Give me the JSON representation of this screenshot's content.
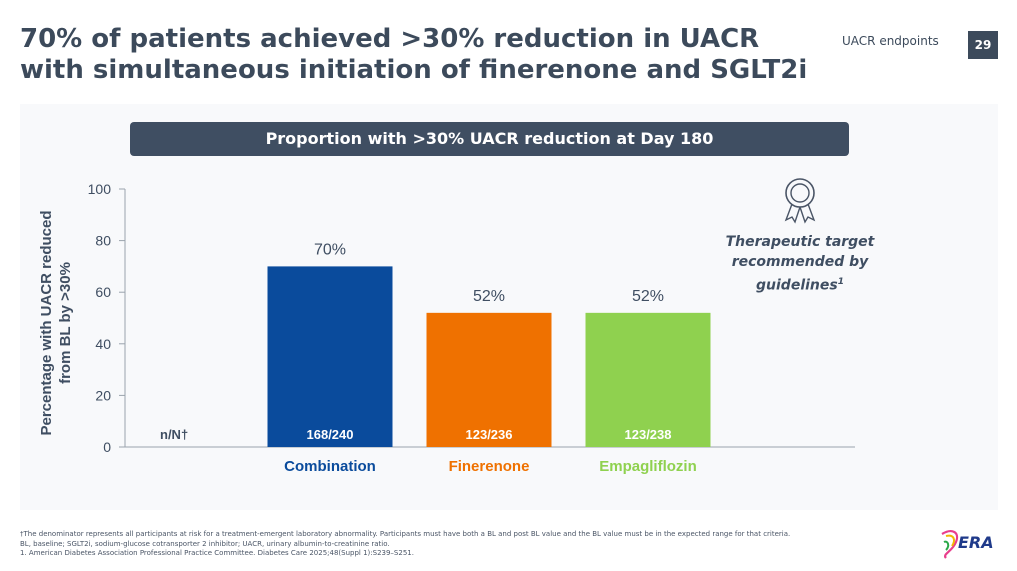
{
  "slide": {
    "title": "70% of patients achieved >30% reduction in UACR with simultaneous initiation of finerenone and SGLT2i",
    "tag": "UACR endpoints",
    "page_number": "29"
  },
  "banner": "Proportion with >30% UACR reduction at Day 180",
  "target_note": {
    "text": "Therapeutic target recommended by guidelines",
    "sup": "1",
    "icon": "award-ribbon-icon"
  },
  "footnotes": [
    "†The denominator represents all participants at risk for a treatment-emergent laboratory abnormality. Participants must have both a BL and post BL value and the BL value must be in the expected range for that criteria.",
    "BL, baseline; SGLT2i, sodium-glucose cotransporter 2 inhibitor; UACR, urinary albumin-to-creatinine ratio.",
    "1. American Diabetes Association Professional Practice Committee. Diabetes Care 2025;48(Suppl 1):S239–S251."
  ],
  "logo_text": "ERA",
  "chart_data": {
    "type": "bar",
    "ylabel": "Percentage with UACR reduced from BL by >30%",
    "ylim": [
      0,
      100
    ],
    "yticks": [
      0,
      20,
      40,
      60,
      80,
      100
    ],
    "grid": false,
    "nn_label": "n/N†",
    "categories": [
      "Combination",
      "Finerenone",
      "Empagliflozin"
    ],
    "values": [
      70,
      52,
      52
    ],
    "value_labels": [
      "70%",
      "52%",
      "52%"
    ],
    "nn": [
      "168/240",
      "123/236",
      "123/238"
    ],
    "colors": [
      "#0a4b9c",
      "#ef7100",
      "#8fd14f"
    ]
  }
}
